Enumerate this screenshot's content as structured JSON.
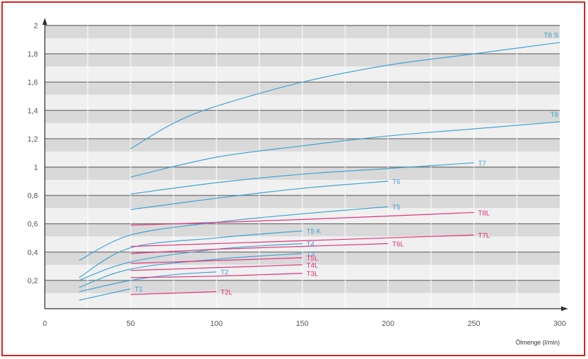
{
  "colors": {
    "blue": "#3fa2d2",
    "pink": "#e0307a",
    "frame": "#d9201f"
  },
  "chart_data": {
    "type": "line",
    "title": "",
    "xlabel": "Ölmenge (l/min)",
    "ylabel": "",
    "xlim": [
      0,
      300
    ],
    "ylim": [
      0,
      2
    ],
    "grid": true,
    "x_ticks": [
      "0",
      "50",
      "100",
      "150",
      "200",
      "250",
      "300"
    ],
    "y_ticks": [
      "0,2",
      "0,4",
      "0,6",
      "0,8",
      "1",
      "1,2",
      "1,4",
      "1,6",
      "1,8",
      "2"
    ],
    "series": [
      {
        "name": "T8 S",
        "color": "blue",
        "x": [
          50,
          75,
          100,
          150,
          200,
          250,
          300
        ],
        "y": [
          1.13,
          1.31,
          1.43,
          1.6,
          1.72,
          1.8,
          1.88
        ]
      },
      {
        "name": "T8",
        "color": "blue",
        "x": [
          50,
          100,
          150,
          200,
          250,
          300
        ],
        "y": [
          0.93,
          1.07,
          1.15,
          1.22,
          1.27,
          1.32
        ]
      },
      {
        "name": "T7",
        "color": "blue",
        "x": [
          50,
          100,
          150,
          200,
          250
        ],
        "y": [
          0.81,
          0.89,
          0.95,
          0.99,
          1.03
        ]
      },
      {
        "name": "T6",
        "color": "blue",
        "x": [
          50,
          100,
          150,
          200
        ],
        "y": [
          0.7,
          0.78,
          0.85,
          0.9
        ]
      },
      {
        "name": "T5",
        "color": "blue",
        "x": [
          20,
          50,
          100,
          150,
          200
        ],
        "y": [
          0.34,
          0.52,
          0.61,
          0.67,
          0.72
        ]
      },
      {
        "name": "T5 K",
        "color": "blue",
        "x": [
          20,
          50,
          100,
          150
        ],
        "y": [
          0.22,
          0.43,
          0.5,
          0.55
        ]
      },
      {
        "name": "T4",
        "color": "blue",
        "x": [
          20,
          50,
          100,
          150
        ],
        "y": [
          0.2,
          0.33,
          0.42,
          0.46
        ]
      },
      {
        "name": "T3",
        "color": "blue",
        "x": [
          20,
          50,
          100,
          150
        ],
        "y": [
          0.15,
          0.28,
          0.35,
          0.39
        ]
      },
      {
        "name": "T2",
        "color": "blue",
        "x": [
          20,
          50,
          75,
          100
        ],
        "y": [
          0.12,
          0.2,
          0.24,
          0.26
        ]
      },
      {
        "name": "T1",
        "color": "blue",
        "x": [
          20,
          35,
          50
        ],
        "y": [
          0.06,
          0.1,
          0.14
        ]
      },
      {
        "name": "T8L",
        "color": "pink",
        "x": [
          50,
          150,
          250
        ],
        "y": [
          0.59,
          0.63,
          0.68
        ]
      },
      {
        "name": "T7L",
        "color": "pink",
        "x": [
          50,
          150,
          250
        ],
        "y": [
          0.44,
          0.48,
          0.52
        ]
      },
      {
        "name": "T6L",
        "color": "pink",
        "x": [
          50,
          100,
          150,
          200
        ],
        "y": [
          0.39,
          0.42,
          0.44,
          0.46
        ]
      },
      {
        "name": "T5L",
        "color": "pink",
        "x": [
          50,
          100,
          150
        ],
        "y": [
          0.32,
          0.34,
          0.36
        ]
      },
      {
        "name": "T4L",
        "color": "pink",
        "x": [
          50,
          100,
          150
        ],
        "y": [
          0.27,
          0.29,
          0.31
        ]
      },
      {
        "name": "T3L",
        "color": "pink",
        "x": [
          50,
          100,
          150
        ],
        "y": [
          0.22,
          0.23,
          0.25
        ]
      },
      {
        "name": "T2L",
        "color": "pink",
        "x": [
          50,
          75,
          100
        ],
        "y": [
          0.1,
          0.11,
          0.12
        ]
      }
    ]
  }
}
